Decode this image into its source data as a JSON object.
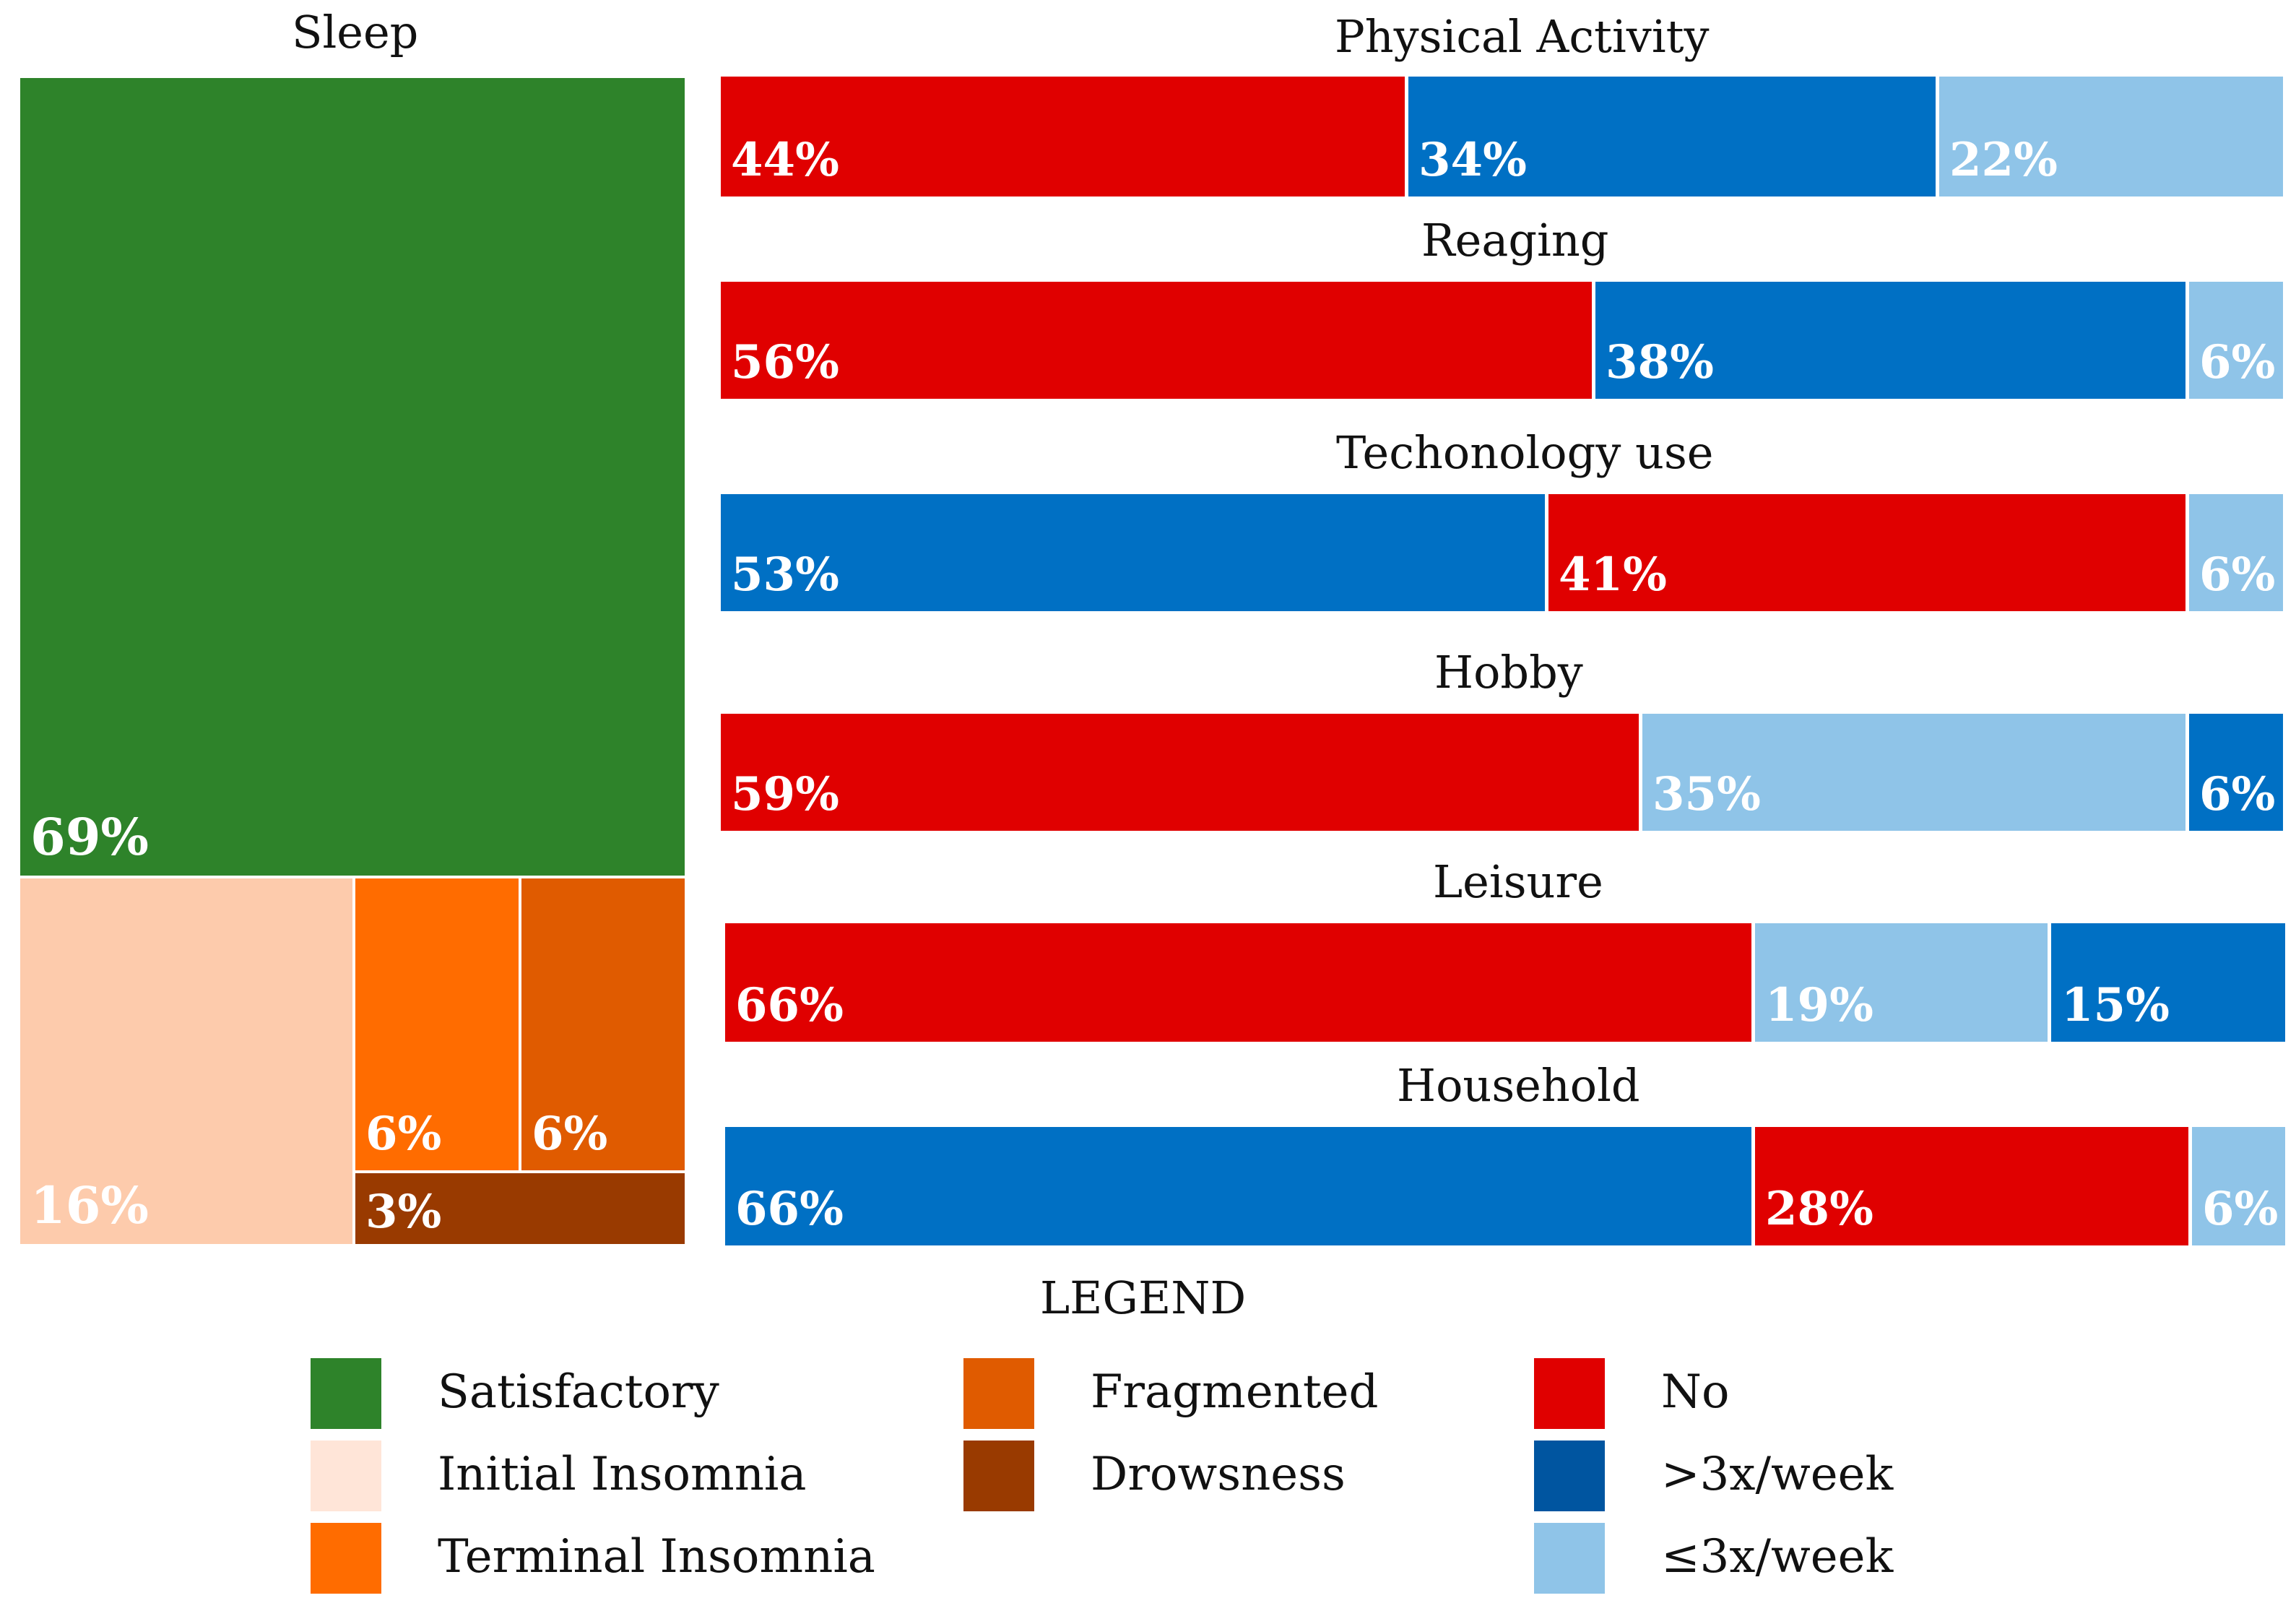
{
  "chart_data": [
    {
      "type": "treemap",
      "title": "Sleep",
      "series": [
        {
          "name": "Satisfactory",
          "value": 69,
          "label": "69%",
          "color": "#2e832a"
        },
        {
          "name": "Initial Insomnia",
          "value": 16,
          "label": "16%",
          "color": "#fdcbac"
        },
        {
          "name": "Terminal Insomnia",
          "value": 6,
          "label": "6%",
          "color": "#ff6c00"
        },
        {
          "name": "Fragmented",
          "value": 6,
          "label": "6%",
          "color": "#e05b00"
        },
        {
          "name": "Drowsness",
          "value": 3,
          "label": "3%",
          "color": "#993a00"
        }
      ]
    },
    {
      "type": "stacked-bar",
      "orientation": "horizontal",
      "unit": "%",
      "bars": [
        {
          "title": "Physical Activity",
          "segments": [
            {
              "category": "No",
              "value": 44,
              "label": "44%"
            },
            {
              "category": ">3x/week",
              "value": 34,
              "label": "34%"
            },
            {
              "category": "≤3x/week",
              "value": 22,
              "label": "22%"
            }
          ]
        },
        {
          "title": "Reaging",
          "segments": [
            {
              "category": "No",
              "value": 56,
              "label": "56%"
            },
            {
              "category": ">3x/week",
              "value": 38,
              "label": "38%"
            },
            {
              "category": "≤3x/week",
              "value": 6,
              "label": "6%"
            }
          ]
        },
        {
          "title": "Techonology use",
          "segments": [
            {
              "category": ">3x/week",
              "value": 53,
              "label": "53%"
            },
            {
              "category": "No",
              "value": 41,
              "label": "41%"
            },
            {
              "category": "≤3x/week",
              "value": 6,
              "label": "6%"
            }
          ]
        },
        {
          "title": "Hobby",
          "segments": [
            {
              "category": "No",
              "value": 59,
              "label": "59%"
            },
            {
              "category": "≤3x/week",
              "value": 35,
              "label": "35%"
            },
            {
              "category": ">3x/week",
              "value": 6,
              "label": "6%"
            }
          ]
        },
        {
          "title": "Leisure",
          "segments": [
            {
              "category": "No",
              "value": 66,
              "label": "66%"
            },
            {
              "category": "≤3x/week",
              "value": 19,
              "label": "19%"
            },
            {
              "category": ">3x/week",
              "value": 15,
              "label": "15%"
            }
          ]
        },
        {
          "title": "Household",
          "segments": [
            {
              "category": ">3x/week",
              "value": 66,
              "label": "66%"
            },
            {
              "category": "No",
              "value": 28,
              "label": "28%"
            },
            {
              "category": "≤3x/week",
              "value": 6,
              "label": "6%"
            }
          ]
        }
      ],
      "category_colors": {
        "No": "#e00000",
        ">3x/week": "#0070c4",
        "≤3x/week": "#8fc4e8"
      }
    }
  ],
  "legend": {
    "title": "LEGEND",
    "items": [
      {
        "label": "Satisfactory",
        "color": "#2e832a"
      },
      {
        "label": "Initial Insomnia",
        "color": "#ffe5d8"
      },
      {
        "label": "Terminal Insomnia",
        "color": "#ff6c00"
      },
      {
        "label": "Fragmented",
        "color": "#e05b00"
      },
      {
        "label": "Drowsness",
        "color": "#993a00"
      },
      {
        "label": "No",
        "color": "#e00000"
      },
      {
        "label": ">3x/week",
        "color": "#0055a0"
      },
      {
        "label": "≤3x/week",
        "color": "#8fc4e8"
      }
    ]
  }
}
